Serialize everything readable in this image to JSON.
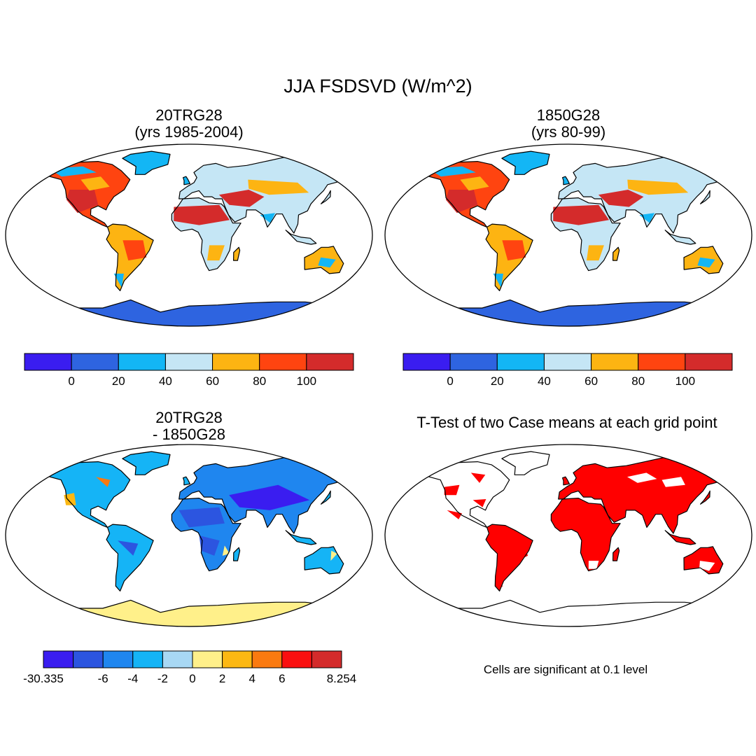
{
  "title": "JJA FSDSVD (W/m^2)",
  "panels": [
    {
      "title_line1": "20TRG28",
      "title_line2": "(yrs 1985-2004)",
      "colorbar": {
        "colors": [
          "#3a1df0",
          "#2e64e0",
          "#13b6f5",
          "#c5e6f5",
          "#fdb412",
          "#ff4410",
          "#d42b2b"
        ],
        "labels": [
          "0",
          "20",
          "40",
          "60",
          "80",
          "100"
        ]
      }
    },
    {
      "title_line1": "1850G28",
      "title_line2": "(yrs 80-99)",
      "colorbar": {
        "colors": [
          "#3a1df0",
          "#2e64e0",
          "#13b6f5",
          "#c5e6f5",
          "#fdb412",
          "#ff4410",
          "#d42b2b"
        ],
        "labels": [
          "0",
          "20",
          "40",
          "60",
          "80",
          "100"
        ]
      }
    },
    {
      "title_line1": "20TRG28",
      "title_line2": "- 1850G28",
      "colorbar": {
        "colors": [
          "#3a1df0",
          "#2c55e0",
          "#1f86ef",
          "#15b4f6",
          "#a8d8f4",
          "#fff08a",
          "#fcb813",
          "#fa7a10",
          "#fa1010",
          "#d42b2b"
        ],
        "labels": [
          "-30.335",
          "-6",
          "-4",
          "-2",
          "0",
          "2",
          "4",
          "6",
          "8.254"
        ]
      }
    },
    {
      "title_line1": "T-Test of two Case means at each grid point",
      "note": "Cells are significant at 0.1 level",
      "sig_color": "#ff0000"
    }
  ]
}
